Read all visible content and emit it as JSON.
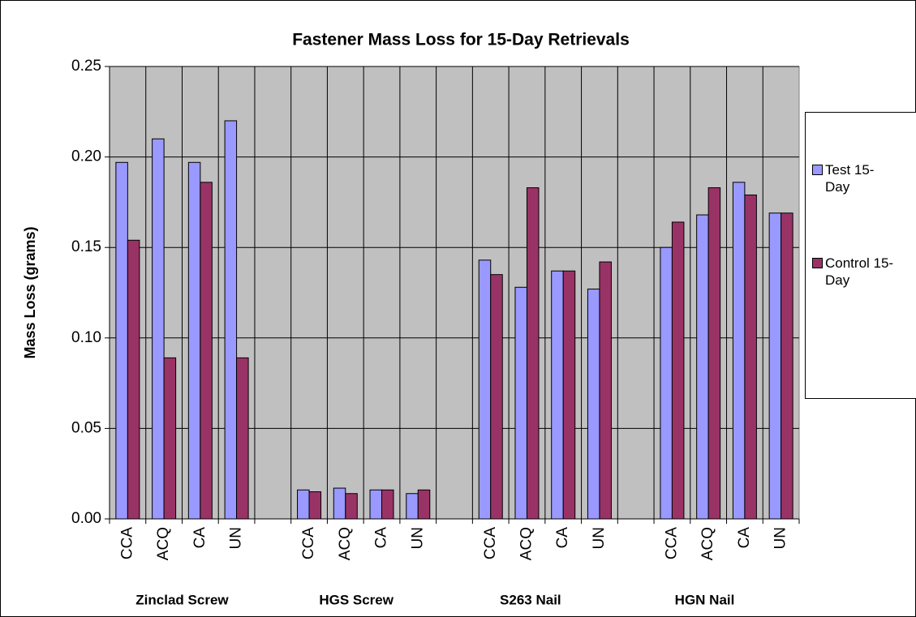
{
  "chart_data": {
    "type": "bar",
    "title": "Fastener Mass Loss for 15-Day Retrievals",
    "y_label": "Mass Loss (grams)",
    "categories": [
      "CCA",
      "ACQ",
      "CA",
      "UN",
      null,
      "CCA",
      "ACQ",
      "CA",
      "UN",
      null,
      "CCA",
      "ACQ",
      "CA",
      "UN",
      null,
      "CCA",
      "ACQ",
      "CA",
      "UN"
    ],
    "groups": [
      "Zinclad Screw",
      "HGS Screw",
      "S263 Nail",
      "HGN Nail"
    ],
    "series": [
      {
        "name": "Test 15-Day",
        "color": "#9999ff",
        "values": [
          0.197,
          0.21,
          0.197,
          0.22,
          null,
          0.016,
          0.017,
          0.016,
          0.014,
          null,
          0.143,
          0.128,
          0.137,
          0.127,
          null,
          0.15,
          0.168,
          0.186,
          0.169
        ]
      },
      {
        "name": "Control 15-Day",
        "color": "#993366",
        "values": [
          0.154,
          0.089,
          0.186,
          0.089,
          null,
          0.015,
          0.014,
          0.016,
          0.016,
          null,
          0.135,
          0.183,
          0.137,
          0.142,
          null,
          0.164,
          0.183,
          0.179,
          0.169
        ]
      }
    ],
    "ylim": [
      0,
      0.25
    ],
    "yticks": [
      {
        "value": 0,
        "label": "0.00"
      },
      {
        "value": 0.05,
        "label": "0.05"
      },
      {
        "value": 0.1,
        "label": "0.10"
      },
      {
        "value": 0.15,
        "label": "0.15"
      },
      {
        "value": 0.2,
        "label": "0.20"
      },
      0.25
    ],
    "grid": true,
    "legend": "right"
  }
}
